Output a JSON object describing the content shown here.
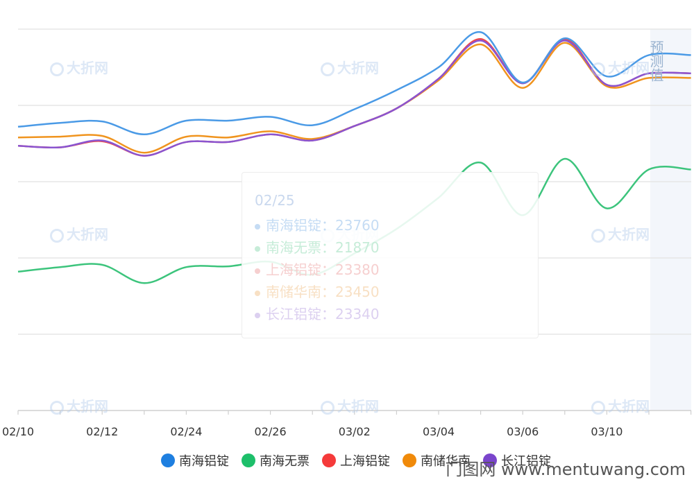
{
  "chart_data": {
    "type": "line",
    "smooth": true,
    "grid": true,
    "legend_position": "bottom",
    "x_tick_labels": [
      "02/10",
      "02/12",
      "02/24",
      "02/26",
      "03/02",
      "03/04",
      "03/06",
      "03/10"
    ],
    "forecast_label": "预测值",
    "y_range": [
      20000,
      25000
    ],
    "series": [
      {
        "name": "南海铝锭",
        "color": "#4a9ae6",
        "values": [
          23720,
          23770,
          23790,
          23620,
          23800,
          23800,
          23850,
          23740,
          23950,
          24200,
          24500,
          24960,
          24300,
          24880,
          24380,
          24660,
          24660
        ]
      },
      {
        "name": "南海无票",
        "color": "#3cc47c",
        "values": [
          21820,
          21880,
          21910,
          21670,
          21880,
          21890,
          21950,
          21780,
          22060,
          22380,
          22790,
          23250,
          22560,
          23300,
          22650,
          23160,
          23160
        ]
      },
      {
        "name": "上海铝锭",
        "color": "#f04848",
        "values": [
          23470,
          23450,
          23530,
          23340,
          23520,
          23520,
          23620,
          23540,
          23730,
          23960,
          24350,
          24870,
          24290,
          24870,
          24270,
          24420,
          24420
        ]
      },
      {
        "name": "南储华南",
        "color": "#f0941e",
        "values": [
          23580,
          23590,
          23600,
          23380,
          23590,
          23580,
          23660,
          23560,
          23730,
          23960,
          24330,
          24800,
          24230,
          24820,
          24250,
          24360,
          24360
        ]
      },
      {
        "name": "长江铝锭",
        "color": "#8a55d0",
        "values": [
          23470,
          23450,
          23540,
          23340,
          23520,
          23520,
          23620,
          23540,
          23730,
          23960,
          24350,
          24850,
          24290,
          24850,
          24270,
          24420,
          24420
        ]
      }
    ]
  },
  "tooltip": {
    "date": "02/25",
    "rows": [
      {
        "name": "南海铝锭",
        "value": "23760",
        "color": "#c5dcf4"
      },
      {
        "name": "南海无票",
        "value": "21870",
        "color": "#c6ecd8"
      },
      {
        "name": "上海铝锭",
        "value": "23380",
        "color": "#f6cfcf"
      },
      {
        "name": "南储华南",
        "value": "23450",
        "color": "#f8e0c4"
      },
      {
        "name": "长江铝锭",
        "value": "23340",
        "color": "#dcd0f0"
      }
    ],
    "separator": "："
  },
  "watermark_text": "大折网",
  "site_mark": "门图网 www.mentuwang.com"
}
